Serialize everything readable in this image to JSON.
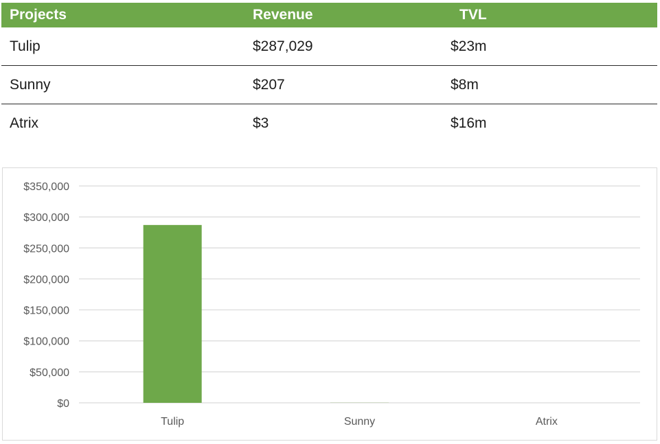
{
  "table": {
    "headers": [
      "Projects",
      "Revenue",
      "TVL"
    ],
    "rows": [
      [
        "Tulip",
        "$287,029",
        "$23m"
      ],
      [
        "Sunny",
        "$207",
        "$8m"
      ],
      [
        "Atrix",
        "$3",
        "$16m"
      ]
    ]
  },
  "colors": {
    "accent": "#6ea84a",
    "bar": "#6ea84a",
    "grid": "#d9d9d9"
  },
  "chart_data": {
    "type": "bar",
    "categories": [
      "Tulip",
      "Sunny",
      "Atrix"
    ],
    "values": [
      287029,
      207,
      3
    ],
    "ylim": [
      0,
      350000
    ],
    "yticks": [
      0,
      50000,
      100000,
      150000,
      200000,
      250000,
      300000,
      350000
    ],
    "ytick_labels": [
      "$0",
      "$50,000",
      "$100,000",
      "$150,000",
      "$200,000",
      "$250,000",
      "$300,000",
      "$350,000"
    ],
    "grid": true,
    "legend": "none"
  }
}
